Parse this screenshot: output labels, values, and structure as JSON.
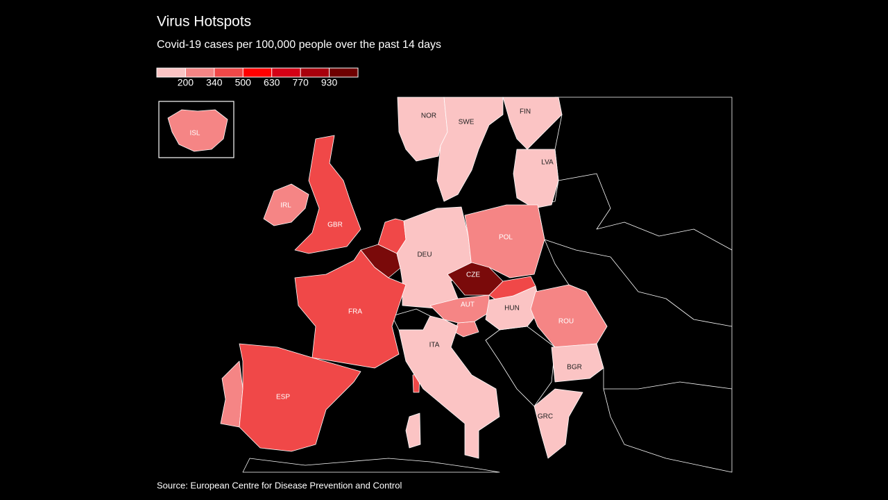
{
  "title": "Virus Hotspots",
  "subtitle": "Covid-19 cases per 100,000 people over the past 14 days",
  "source": "Source: European Centre for Disease Prevention and Control",
  "legend": {
    "colors": [
      "#fbc4c4",
      "#f58585",
      "#f04848",
      "#ff0000",
      "#d40015",
      "#a8000c",
      "#6e0000"
    ],
    "ticks": [
      200,
      340,
      500,
      630,
      770,
      930
    ]
  },
  "countries": [
    {
      "label": "NOR",
      "color": "#fbc4c4"
    },
    {
      "label": "SWE",
      "color": "#fbc4c4"
    },
    {
      "label": "FIN",
      "color": "#fbc4c4"
    },
    {
      "label": "LVA",
      "color": "#fbc4c4"
    },
    {
      "label": "ISL",
      "color": "#f58585"
    },
    {
      "label": "IRL",
      "color": "#f58585"
    },
    {
      "label": "GBR",
      "color": "#f04848"
    },
    {
      "label": "DEU",
      "color": "#fbc4c4"
    },
    {
      "label": "POL",
      "color": "#f58585"
    },
    {
      "label": "CZE",
      "color": "#7a0a0a"
    },
    {
      "label": "FRA",
      "color": "#f04848"
    },
    {
      "label": "AUT",
      "color": "#f58585"
    },
    {
      "label": "HUN",
      "color": "#fbc4c4"
    },
    {
      "label": "ROU",
      "color": "#f58585"
    },
    {
      "label": "ITA",
      "color": "#fbc4c4"
    },
    {
      "label": "BGR",
      "color": "#fbc4c4"
    },
    {
      "label": "ESP",
      "color": "#f04848"
    },
    {
      "label": "GRC",
      "color": "#fbc4c4"
    }
  ]
}
